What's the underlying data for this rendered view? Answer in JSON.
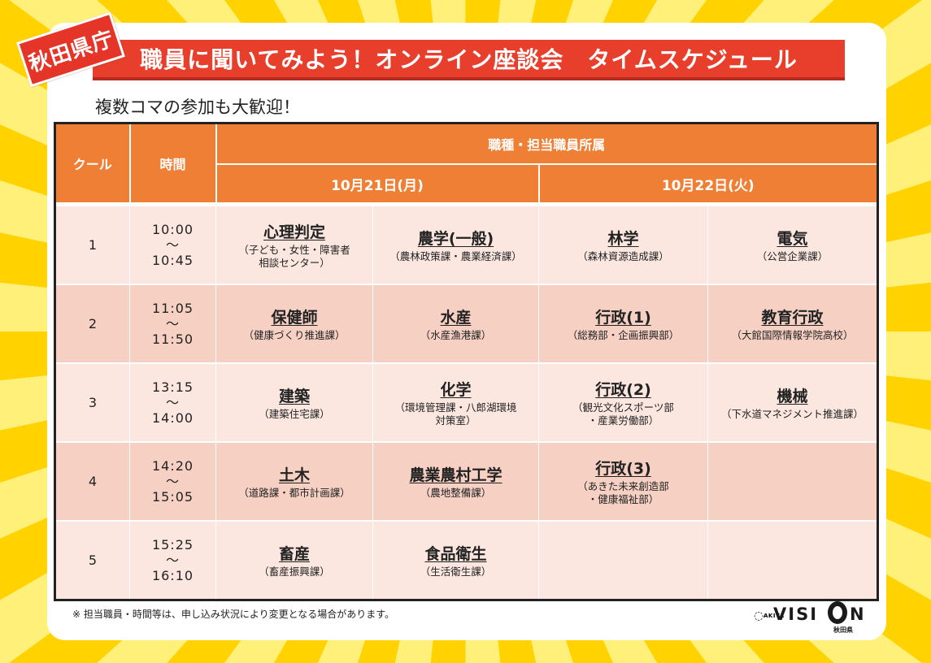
{
  "pref_tag": "秋田県庁",
  "title": "職員に聞いてみよう！オンライン座談会　タイムスケジュール",
  "subtitle": "複数コマの参加も大歓迎！",
  "table": {
    "col_cool": "クール",
    "col_time": "時間",
    "col_group": "職種・担当職員所属",
    "date1": "10月21日(月)",
    "date2": "10月22日(火)",
    "rows": [
      {
        "cool": "1",
        "start": "10:00",
        "tilde": "〜",
        "end": "10:45",
        "cells": [
          {
            "job": "心理判定",
            "dept1": "（子ども・女性・障害者",
            "dept2": "相談センター）"
          },
          {
            "job": "農学(一般)",
            "dept1": "（農林政策課・農業経済課）",
            "dept2": ""
          },
          {
            "job": "林学",
            "dept1": "（森林資源造成課）",
            "dept2": ""
          },
          {
            "job": "電気",
            "dept1": "（公営企業課）",
            "dept2": ""
          }
        ]
      },
      {
        "cool": "2",
        "start": "11:05",
        "tilde": "〜",
        "end": "11:50",
        "cells": [
          {
            "job": "保健師",
            "dept1": "（健康づくり推進課）",
            "dept2": ""
          },
          {
            "job": "水産",
            "dept1": "（水産漁港課）",
            "dept2": ""
          },
          {
            "job": "行政(1)",
            "dept1": "（総務部・企画振興部）",
            "dept2": ""
          },
          {
            "job": "教育行政",
            "dept1": "（大館国際情報学院高校）",
            "dept2": ""
          }
        ]
      },
      {
        "cool": "3",
        "start": "13:15",
        "tilde": "〜",
        "end": "14:00",
        "cells": [
          {
            "job": "建築",
            "dept1": "（建築住宅課）",
            "dept2": ""
          },
          {
            "job": "化学",
            "dept1": "（環境管理課・八郎湖環境",
            "dept2": "対策室）"
          },
          {
            "job": "行政(2)",
            "dept1": "（観光文化スポーツ部",
            "dept2": "・産業労働部）"
          },
          {
            "job": "機械",
            "dept1": "（下水道マネジメント推進課）",
            "dept2": ""
          }
        ]
      },
      {
        "cool": "4",
        "start": "14:20",
        "tilde": "〜",
        "end": "15:05",
        "cells": [
          {
            "job": "土木",
            "dept1": "（道路課・都市計画課）",
            "dept2": ""
          },
          {
            "job": "農業農村工学",
            "dept1": "（農地整備課）",
            "dept2": ""
          },
          {
            "job": "行政(3)",
            "dept1": "（あきた未来創造部",
            "dept2": "・健康福祉部）"
          },
          {
            "job": "",
            "dept1": "",
            "dept2": ""
          }
        ]
      },
      {
        "cool": "5",
        "start": "15:25",
        "tilde": "〜",
        "end": "16:10",
        "cells": [
          {
            "job": "畜産",
            "dept1": "（畜産振興課）",
            "dept2": ""
          },
          {
            "job": "食品衛生",
            "dept1": "（生活衛生課）",
            "dept2": ""
          },
          {
            "job": "",
            "dept1": "",
            "dept2": ""
          },
          {
            "job": "",
            "dept1": "",
            "dept2": ""
          }
        ]
      }
    ]
  },
  "note": "※ 担当職員・時間等は、申し込み状況により変更となる場合があります。",
  "logo": {
    "akita": "AKITA",
    "word": "VISI",
    "n": "N",
    "pref": "秋田県"
  }
}
